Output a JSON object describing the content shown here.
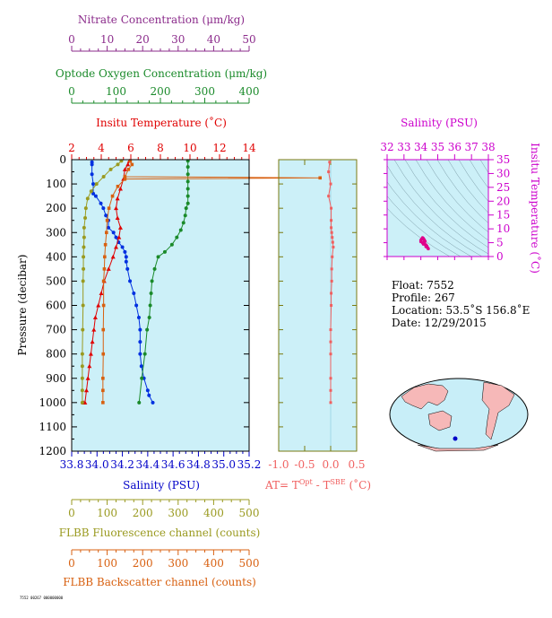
{
  "chart_data": [
    {
      "type": "line",
      "panel": "profile",
      "ylabel": "Pressure (decibar)",
      "ylim": [
        0,
        1200
      ],
      "yticks": [
        0,
        100,
        200,
        300,
        400,
        500,
        600,
        700,
        800,
        900,
        1000,
        1100,
        1200
      ],
      "axes": [
        {
          "key": "nitrate",
          "label": "Nitrate Concentration (μm/kg)",
          "range": [
            0,
            50
          ],
          "ticks": [
            0,
            10,
            20,
            30,
            40,
            50
          ],
          "color": "#8b2b8b"
        },
        {
          "key": "oxygen",
          "label": "Optode Oxygen Concentration (μm/kg)",
          "range": [
            0,
            400
          ],
          "ticks": [
            0,
            100,
            200,
            300,
            400
          ],
          "color": "#1a8a2a"
        },
        {
          "key": "temp",
          "label": "Insitu Temperature (˚C)",
          "range": [
            2,
            14
          ],
          "ticks": [
            2,
            4,
            6,
            8,
            10,
            12,
            14
          ],
          "color": "#e00000"
        },
        {
          "key": "sal",
          "label": "Salinity (PSU)",
          "range": [
            33.8,
            35.2
          ],
          "ticks": [
            "33.8",
            "34.0",
            "34.2",
            "34.4",
            "34.6",
            "34.8",
            "35.0",
            "35.2"
          ],
          "color": "#0000c8"
        },
        {
          "key": "fl",
          "label": "FLBB Fluorescence channel (counts)",
          "range": [
            0,
            500
          ],
          "ticks": [
            0,
            100,
            200,
            300,
            400,
            500
          ],
          "color": "#9a9a20"
        },
        {
          "key": "bb",
          "label": "FLBB Backscatter channel (counts)",
          "range": [
            0,
            500
          ],
          "ticks": [
            0,
            100,
            200,
            300,
            400,
            500
          ],
          "color": "#d86010"
        }
      ],
      "series": [
        {
          "axis": "sal",
          "color": "#0030e0",
          "marker": "circle",
          "x": [
            33.96,
            33.96,
            33.96,
            33.97,
            33.97,
            33.99,
            34.03,
            34.05,
            34.07,
            34.09,
            34.09,
            34.13,
            34.15,
            34.17,
            34.2,
            34.22,
            34.23,
            34.23,
            34.24,
            34.26,
            34.29,
            34.31,
            34.33,
            34.34,
            34.34,
            34.34,
            34.35,
            34.37,
            34.4,
            34.41,
            34.44
          ],
          "y": [
            10,
            20,
            60,
            100,
            140,
            150,
            180,
            200,
            230,
            250,
            280,
            300,
            320,
            340,
            360,
            380,
            400,
            420,
            450,
            500,
            550,
            600,
            650,
            700,
            750,
            800,
            850,
            900,
            950,
            970,
            1000
          ]
        },
        {
          "axis": "temp",
          "color": "#e00000",
          "marker": "triangle",
          "x": [
            5.9,
            5.8,
            5.6,
            5.5,
            5.3,
            5.1,
            5.0,
            5.1,
            5.3,
            5.2,
            5.0,
            4.8,
            4.5,
            4.2,
            4.0,
            3.8,
            3.6,
            3.5,
            3.4,
            3.3,
            3.2,
            3.1,
            3.0,
            2.9,
            2.8,
            2.8
          ],
          "y": [
            5,
            20,
            40,
            80,
            120,
            160,
            200,
            240,
            280,
            320,
            360,
            400,
            450,
            500,
            550,
            600,
            650,
            700,
            750,
            800,
            850,
            900,
            950,
            1000,
            1000,
            1000
          ]
        },
        {
          "axis": "oxygen",
          "color": "#1a8a2a",
          "marker": "circle",
          "x": [
            262,
            262,
            262,
            262,
            262,
            262,
            262,
            258,
            256,
            252,
            246,
            237,
            226,
            210,
            195,
            187,
            181,
            179,
            177,
            175,
            170,
            165,
            158,
            152
          ],
          "y": [
            5,
            30,
            60,
            90,
            120,
            150,
            180,
            200,
            230,
            260,
            290,
            320,
            350,
            380,
            400,
            450,
            500,
            550,
            600,
            650,
            700,
            800,
            900,
            1000
          ]
        },
        {
          "axis": "fl",
          "color": "#9a9a20",
          "marker": "circle",
          "x": [
            140,
            130,
            110,
            90,
            70,
            55,
            45,
            40,
            38,
            35,
            35,
            34,
            33,
            33,
            32,
            32,
            31,
            30,
            30,
            30,
            30,
            30
          ],
          "y": [
            5,
            20,
            40,
            70,
            100,
            130,
            160,
            200,
            240,
            280,
            320,
            360,
            400,
            450,
            500,
            600,
            700,
            800,
            850,
            900,
            950,
            1000
          ]
        },
        {
          "axis": "bb",
          "color": "#d86010",
          "marker": "square",
          "x": [
            165,
            170,
            160,
            150,
            700,
            150,
            130,
            115,
            105,
            100,
            98,
            95,
            93,
            92,
            90,
            90,
            89,
            89,
            88,
            88,
            88
          ],
          "y": [
            5,
            20,
            40,
            70,
            75,
            80,
            110,
            150,
            200,
            250,
            300,
            350,
            400,
            450,
            500,
            600,
            700,
            800,
            900,
            950,
            1000
          ]
        }
      ]
    },
    {
      "type": "line",
      "panel": "delta-t",
      "xlabel_main": "AT= T",
      "xlabel_sup1": "Opt",
      "xlabel_mid": " - T",
      "xlabel_sup2": "SBE",
      "xlabel_tail": " (˚C)",
      "xlim": [
        -1.0,
        0.5
      ],
      "xticks": [
        "-1.0",
        "-0.5",
        "0.0",
        "0.5"
      ],
      "color": "#f06060",
      "x": [
        -0.02,
        -0.04,
        0.0,
        -0.04,
        0.01,
        0.01,
        0.01,
        0.02,
        0.03,
        0.04,
        0.05,
        0.03,
        0.02,
        0.02,
        0.01,
        0.01,
        0.0,
        0.0,
        0.0,
        0.0,
        0.0,
        0.0
      ],
      "y": [
        10,
        50,
        100,
        150,
        200,
        250,
        280,
        300,
        320,
        340,
        360,
        400,
        450,
        500,
        550,
        600,
        700,
        750,
        800,
        900,
        950,
        1000
      ]
    },
    {
      "type": "scatter",
      "panel": "ts-diagram",
      "title": "Salinity (PSU)",
      "ylabel": "Insitu Temperature (˚C)",
      "xlim": [
        32,
        38
      ],
      "ylim": [
        0,
        35
      ],
      "xticks": [
        32,
        33,
        34,
        35,
        36,
        37,
        38
      ],
      "yticks": [
        0,
        5,
        10,
        15,
        20,
        25,
        30,
        35
      ],
      "color": "#e0008a",
      "x": [
        34.0,
        34.05,
        34.1,
        34.15,
        34.2,
        34.25,
        34.1,
        34.0,
        34.2,
        34.3,
        34.35,
        34.4,
        34.44,
        34.3,
        34.15
      ],
      "y": [
        5.9,
        6.3,
        6.8,
        6.5,
        6.0,
        5.5,
        5.0,
        5.4,
        4.8,
        4.2,
        3.8,
        3.2,
        2.8,
        3.6,
        4.5
      ]
    }
  ],
  "info": {
    "float": "Float:  7552",
    "profile": "Profile:  267",
    "location": "Location:  53.5˚S  156.8˚E",
    "date": "Date:  12/29/2015"
  },
  "colors": {
    "panel_bg": "#ccf0f8",
    "ts_frame": "#cc00cc",
    "axis_olive": "#7a7a10"
  },
  "footnote": "7552 00267 000000000"
}
